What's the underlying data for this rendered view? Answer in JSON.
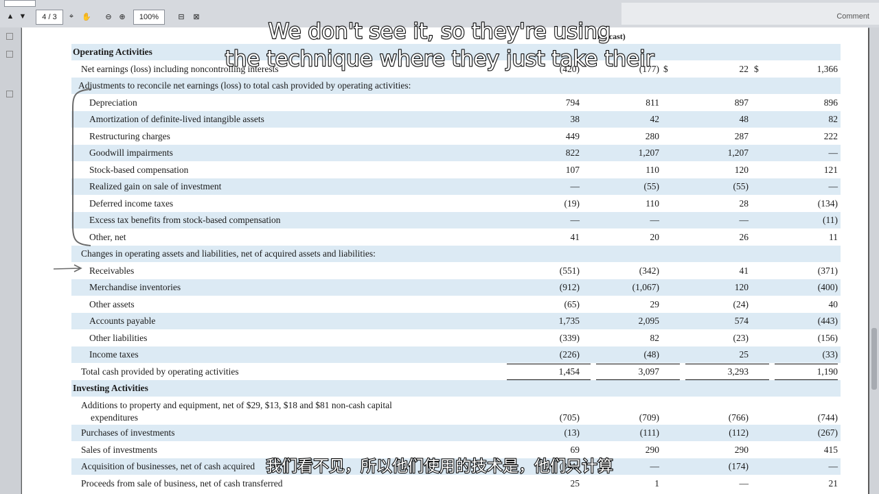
{
  "viewer": {
    "page_label": "4 / 3",
    "zoom": "100%",
    "right_label": "Comment"
  },
  "statement": {
    "column_subheading": "l recast)",
    "sections": [
      {
        "key": "opa",
        "label": "Operating Activities",
        "type": "head",
        "shade": true
      },
      {
        "key": "ne",
        "label": "Net earnings (loss) including noncontrolling interests",
        "indent": 1,
        "shade": false,
        "values": [
          "(420)",
          "(177)",
          "22",
          "1,366"
        ],
        "dollar": true
      },
      {
        "key": "adj",
        "label": "Adjustments to reconcile net earnings (loss) to total cash provided by operating activities:",
        "indent": 0,
        "shade": true
      },
      {
        "key": "dep",
        "label": "Depreciation",
        "indent": 2,
        "shade": false,
        "values": [
          "794",
          "811",
          "897",
          "896"
        ]
      },
      {
        "key": "amo",
        "label": "Amortization of definite-lived intangible assets",
        "indent": 2,
        "shade": true,
        "values": [
          "38",
          "42",
          "48",
          "82"
        ]
      },
      {
        "key": "res",
        "label": "Restructuring charges",
        "indent": 2,
        "shade": false,
        "values": [
          "449",
          "280",
          "287",
          "222"
        ]
      },
      {
        "key": "gw",
        "label": "Goodwill impairments",
        "indent": 2,
        "shade": true,
        "values": [
          "822",
          "1,207",
          "1,207",
          "—"
        ]
      },
      {
        "key": "sbc",
        "label": "Stock-based compensation",
        "indent": 2,
        "shade": false,
        "values": [
          "107",
          "110",
          "120",
          "121"
        ]
      },
      {
        "key": "rg",
        "label": "Realized gain on sale of investment",
        "indent": 2,
        "shade": true,
        "values": [
          "—",
          "(55)",
          "(55)",
          "—"
        ]
      },
      {
        "key": "dit",
        "label": "Deferred income taxes",
        "indent": 2,
        "shade": false,
        "values": [
          "(19)",
          "110",
          "28",
          "(134)"
        ]
      },
      {
        "key": "etb",
        "label": "Excess tax benefits from stock-based compensation",
        "indent": 2,
        "shade": true,
        "values": [
          "—",
          "—",
          "—",
          "(11)"
        ]
      },
      {
        "key": "oth",
        "label": "Other, net",
        "indent": 2,
        "shade": false,
        "values": [
          "41",
          "20",
          "26",
          "11"
        ]
      },
      {
        "key": "chg",
        "label": "Changes in operating assets and liabilities, net of acquired assets and liabilities:",
        "indent": 1,
        "shade": true
      },
      {
        "key": "rec",
        "label": "Receivables",
        "indent": 2,
        "shade": false,
        "values": [
          "(551)",
          "(342)",
          "41",
          "(371)"
        ]
      },
      {
        "key": "inv",
        "label": "Merchandise inventories",
        "indent": 2,
        "shade": true,
        "values": [
          "(912)",
          "(1,067)",
          "120",
          "(400)"
        ]
      },
      {
        "key": "oa",
        "label": "Other assets",
        "indent": 2,
        "shade": false,
        "values": [
          "(65)",
          "29",
          "(24)",
          "40"
        ]
      },
      {
        "key": "ap",
        "label": "Accounts payable",
        "indent": 2,
        "shade": true,
        "values": [
          "1,735",
          "2,095",
          "574",
          "(443)"
        ]
      },
      {
        "key": "ol",
        "label": "Other liabilities",
        "indent": 2,
        "shade": false,
        "values": [
          "(339)",
          "82",
          "(23)",
          "(156)"
        ]
      },
      {
        "key": "it",
        "label": "Income taxes",
        "indent": 2,
        "shade": true,
        "values": [
          "(226)",
          "(48)",
          "25",
          "(33)"
        ]
      },
      {
        "key": "tot",
        "label": "Total cash provided by operating activities",
        "indent": 1,
        "shade": false,
        "values": [
          "1,454",
          "3,097",
          "3,293",
          "1,190"
        ]
      },
      {
        "key": "inva",
        "label": "Investing Activities",
        "type": "head",
        "shade": true
      },
      {
        "key": "add",
        "label": "Additions to property and equipment, net of $29, $13, $18 and $81 non-cash capital",
        "label2": "expenditures",
        "indent": 1,
        "shade": false,
        "values": [
          "(705)",
          "(709)",
          "(766)",
          "(744)"
        ],
        "tall": true
      },
      {
        "key": "pur",
        "label": "Purchases of investments",
        "indent": 1,
        "shade": true,
        "values": [
          "(13)",
          "(111)",
          "(112)",
          "(267)"
        ]
      },
      {
        "key": "sal",
        "label": "Sales of investments",
        "indent": 1,
        "shade": false,
        "values": [
          "69",
          "290",
          "290",
          "415"
        ]
      },
      {
        "key": "acq",
        "label": "Acquisition of businesses, net of cash acquired",
        "indent": 1,
        "shade": true,
        "values": [
          "(341)",
          "—",
          "(174)",
          "—"
        ]
      },
      {
        "key": "pro",
        "label": "Proceeds from sale of business, net of cash transferred",
        "indent": 1,
        "shade": false,
        "values": [
          "25",
          "1",
          "—",
          "21"
        ]
      }
    ]
  },
  "captions": {
    "en_line1": "We don't see it, so they're using",
    "en_line2": "the technique where they just take their",
    "zh": "我们看不见，所以他们使用的技术是，他们只计算"
  }
}
